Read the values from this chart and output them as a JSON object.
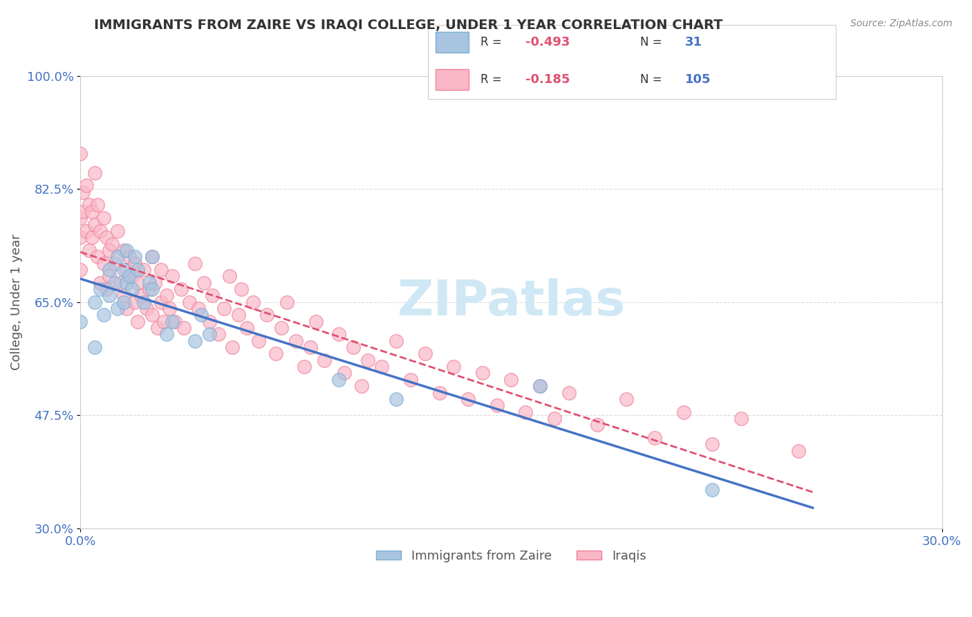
{
  "title": "IMMIGRANTS FROM ZAIRE VS IRAQI COLLEGE, UNDER 1 YEAR CORRELATION CHART",
  "source_text": "Source: ZipAtlas.com",
  "xlabel": "",
  "ylabel": "College, Under 1 year",
  "x_tick_labels": [
    "0.0%",
    "30.0%"
  ],
  "y_tick_labels": [
    "30.0%",
    "47.5%",
    "65.0%",
    "82.5%",
    "100.0%"
  ],
  "x_min": 0.0,
  "x_max": 0.3,
  "y_min": 0.3,
  "y_max": 1.0,
  "legend_entries": [
    {
      "label": "R = -0.493  N =  31",
      "color": "#a8c4e0"
    },
    {
      "label": "R =  -0.185   N = 105",
      "color": "#f4a7b9"
    }
  ],
  "bg_color": "#ffffff",
  "grid_color": "#cccccc",
  "watermark_text": "ZIPatlas",
  "watermark_color": "#d0e8f5",
  "title_color": "#333333",
  "axis_label_color": "#555555",
  "tick_label_color": "#4472c4",
  "r_value_color": "#e05070",
  "n_value_color": "#4472c4",
  "legend_r_color": "#e05070",
  "legend_n_color": "#4472c4",
  "zaire_scatter_color": "#a8c4e0",
  "zaire_scatter_edge": "#7bafd4",
  "iraqi_scatter_color": "#f9b8c8",
  "iraqi_scatter_edge": "#f08098",
  "zaire_line_color": "#4472c4",
  "iraqi_line_color": "#e05070",
  "zaire_points_x": [
    0.0,
    0.005,
    0.005,
    0.007,
    0.008,
    0.01,
    0.01,
    0.012,
    0.013,
    0.013,
    0.015,
    0.015,
    0.016,
    0.016,
    0.017,
    0.018,
    0.019,
    0.02,
    0.022,
    0.024,
    0.025,
    0.025,
    0.03,
    0.032,
    0.04,
    0.042,
    0.045,
    0.09,
    0.11,
    0.16,
    0.22
  ],
  "zaire_points_y": [
    0.62,
    0.58,
    0.65,
    0.67,
    0.63,
    0.66,
    0.7,
    0.68,
    0.64,
    0.72,
    0.65,
    0.7,
    0.68,
    0.73,
    0.69,
    0.67,
    0.72,
    0.7,
    0.65,
    0.68,
    0.67,
    0.72,
    0.6,
    0.62,
    0.59,
    0.63,
    0.6,
    0.53,
    0.5,
    0.52,
    0.36
  ],
  "iraqi_points_x": [
    0.0,
    0.0,
    0.0,
    0.0,
    0.001,
    0.001,
    0.002,
    0.002,
    0.003,
    0.003,
    0.004,
    0.004,
    0.005,
    0.005,
    0.006,
    0.006,
    0.007,
    0.007,
    0.008,
    0.008,
    0.009,
    0.009,
    0.01,
    0.01,
    0.011,
    0.012,
    0.013,
    0.014,
    0.015,
    0.015,
    0.016,
    0.016,
    0.017,
    0.018,
    0.019,
    0.019,
    0.02,
    0.02,
    0.021,
    0.022,
    0.023,
    0.024,
    0.025,
    0.025,
    0.026,
    0.027,
    0.028,
    0.028,
    0.029,
    0.03,
    0.031,
    0.032,
    0.033,
    0.035,
    0.036,
    0.038,
    0.04,
    0.041,
    0.043,
    0.045,
    0.046,
    0.048,
    0.05,
    0.052,
    0.053,
    0.055,
    0.056,
    0.058,
    0.06,
    0.062,
    0.065,
    0.068,
    0.07,
    0.072,
    0.075,
    0.078,
    0.08,
    0.082,
    0.085,
    0.09,
    0.092,
    0.095,
    0.098,
    0.1,
    0.105,
    0.11,
    0.115,
    0.12,
    0.125,
    0.13,
    0.135,
    0.14,
    0.145,
    0.15,
    0.155,
    0.16,
    0.165,
    0.17,
    0.18,
    0.19,
    0.2,
    0.21,
    0.22,
    0.23,
    0.25
  ],
  "iraqi_points_y": [
    0.88,
    0.78,
    0.75,
    0.7,
    0.82,
    0.79,
    0.83,
    0.76,
    0.8,
    0.73,
    0.79,
    0.75,
    0.85,
    0.77,
    0.8,
    0.72,
    0.76,
    0.68,
    0.78,
    0.71,
    0.75,
    0.67,
    0.73,
    0.69,
    0.74,
    0.71,
    0.76,
    0.68,
    0.73,
    0.66,
    0.7,
    0.64,
    0.72,
    0.69,
    0.71,
    0.65,
    0.68,
    0.62,
    0.66,
    0.7,
    0.64,
    0.67,
    0.72,
    0.63,
    0.68,
    0.61,
    0.65,
    0.7,
    0.62,
    0.66,
    0.64,
    0.69,
    0.62,
    0.67,
    0.61,
    0.65,
    0.71,
    0.64,
    0.68,
    0.62,
    0.66,
    0.6,
    0.64,
    0.69,
    0.58,
    0.63,
    0.67,
    0.61,
    0.65,
    0.59,
    0.63,
    0.57,
    0.61,
    0.65,
    0.59,
    0.55,
    0.58,
    0.62,
    0.56,
    0.6,
    0.54,
    0.58,
    0.52,
    0.56,
    0.55,
    0.59,
    0.53,
    0.57,
    0.51,
    0.55,
    0.5,
    0.54,
    0.49,
    0.53,
    0.48,
    0.52,
    0.47,
    0.51,
    0.46,
    0.5,
    0.44,
    0.48,
    0.43,
    0.47,
    0.42
  ]
}
